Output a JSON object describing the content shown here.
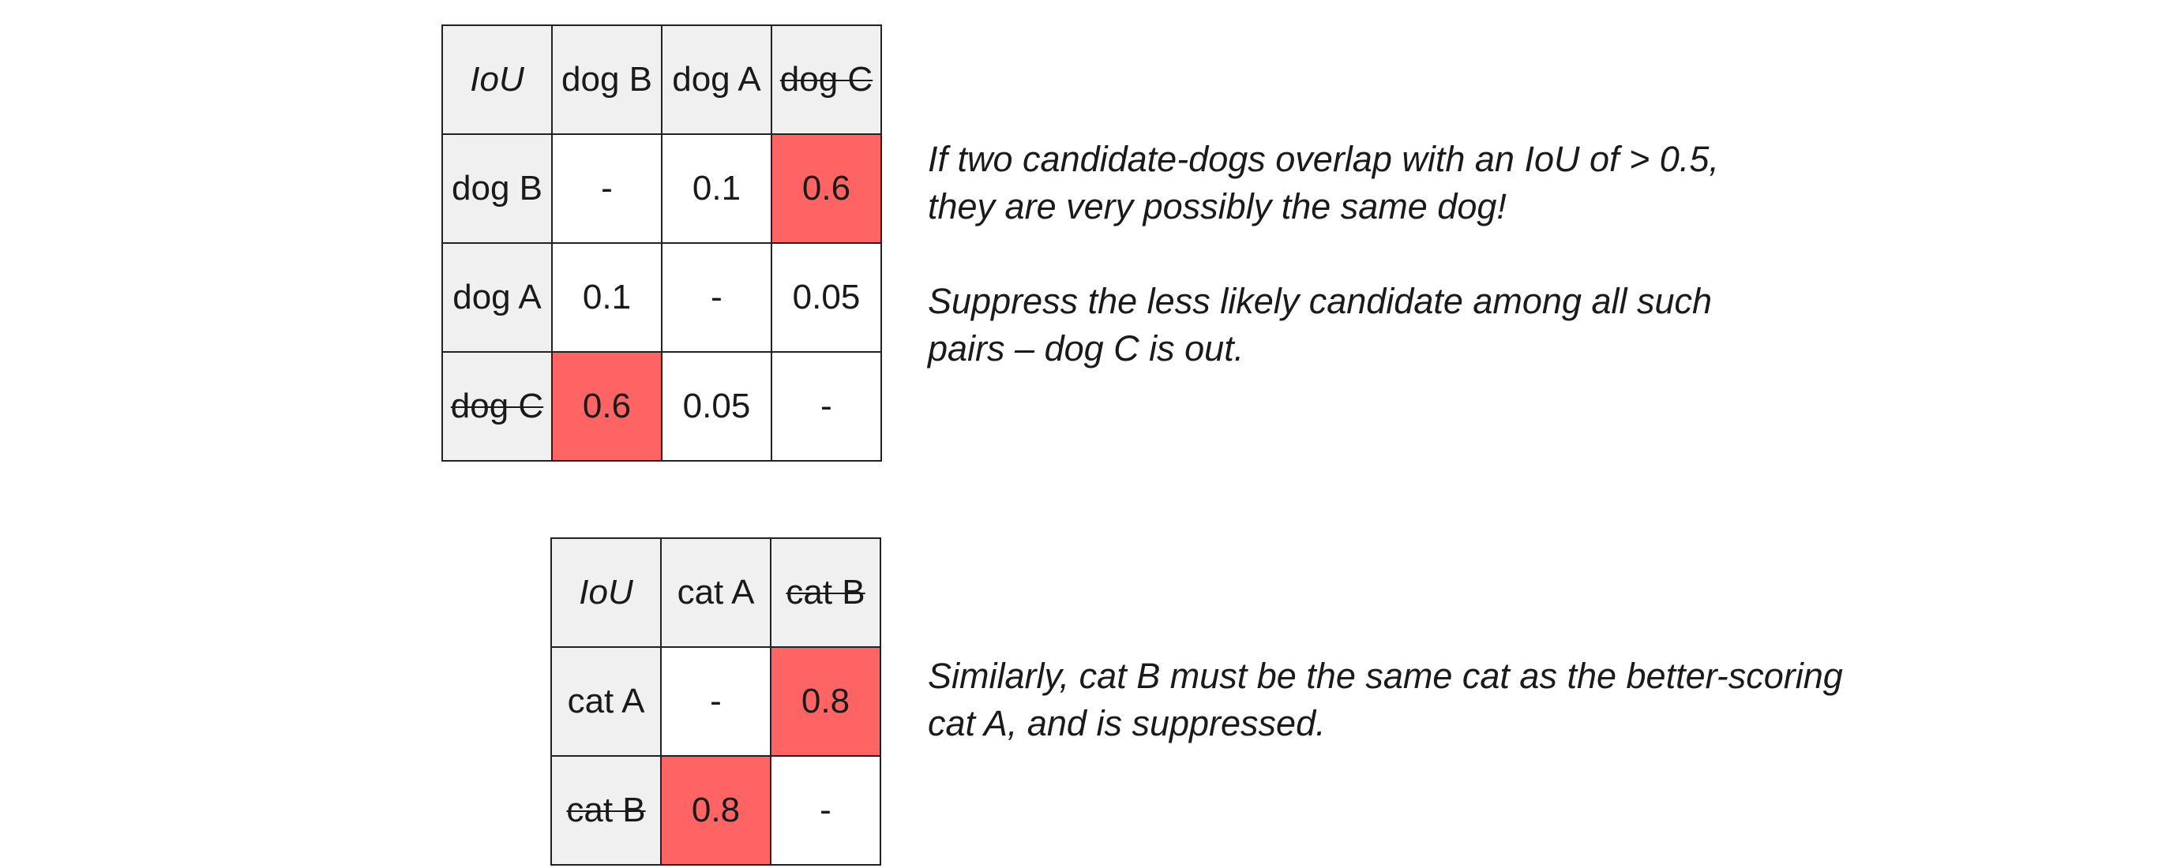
{
  "colors": {
    "highlight": "#ff6464",
    "header_bg": "#f0f0f0",
    "border": "#222222"
  },
  "dog_table": {
    "corner": "IoU",
    "col_headers": [
      "dog B",
      "dog A",
      "dog C"
    ],
    "rows": [
      {
        "label": "dog B",
        "cells": [
          "-",
          "0.1",
          "0.6"
        ]
      },
      {
        "label": "dog A",
        "cells": [
          "0.1",
          "-",
          "0.05"
        ]
      },
      {
        "label": "dog C",
        "cells": [
          "0.6",
          "0.05",
          "-"
        ]
      }
    ],
    "suppressed": "dog C"
  },
  "cat_table": {
    "corner": "IoU",
    "col_headers": [
      "cat A",
      "cat B"
    ],
    "rows": [
      {
        "label": "cat A",
        "cells": [
          "-",
          "0.8"
        ]
      },
      {
        "label": "cat B",
        "cells": [
          "0.8",
          "-"
        ]
      }
    ],
    "suppressed": "cat B"
  },
  "dog_note": {
    "line1": "If two candidate-dogs overlap with an IoU of > 0.5,",
    "line2": "they are very possibly the same dog!",
    "line3": "Suppress the less likely candidate among all such",
    "line4": "pairs – dog C is out."
  },
  "cat_note": {
    "line1": "Similarly, cat B must be the same cat as the better-scoring",
    "line2": "cat A, and is suppressed."
  }
}
